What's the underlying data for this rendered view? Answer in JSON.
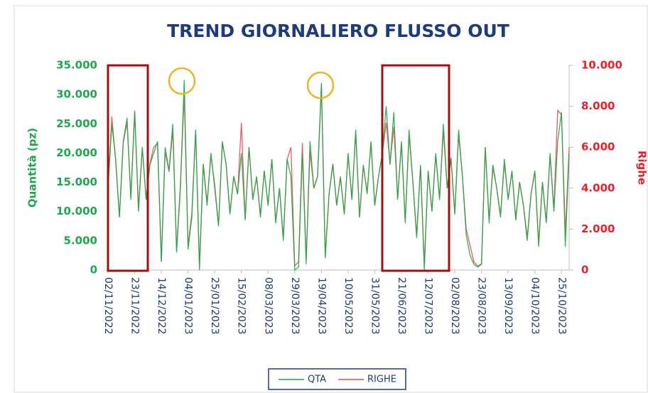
{
  "chart_data": {
    "type": "line",
    "title": "TREND GIORNALIERO FLUSSO OUT",
    "y_label": "Quantità (pz)",
    "y2_label": "Righe",
    "categories": [
      "02/11/2022",
      null,
      null,
      null,
      null,
      null,
      null,
      "23/11/2022",
      null,
      null,
      null,
      null,
      null,
      null,
      "14/12/2022",
      null,
      null,
      null,
      null,
      null,
      null,
      "04/01/2023",
      null,
      null,
      null,
      null,
      null,
      null,
      "25/01/2023",
      null,
      null,
      null,
      null,
      null,
      null,
      "15/02/2023",
      null,
      null,
      null,
      null,
      null,
      null,
      "08/03/2023",
      null,
      null,
      null,
      null,
      null,
      null,
      "29/03/2023",
      null,
      null,
      null,
      null,
      null,
      null,
      "19/04/2023",
      null,
      null,
      null,
      null,
      null,
      null,
      "10/05/2023",
      null,
      null,
      null,
      null,
      null,
      null,
      "31/05/2023",
      null,
      null,
      null,
      null,
      null,
      null,
      "21/06/2023",
      null,
      null,
      null,
      null,
      null,
      null,
      "12/07/2023",
      null,
      null,
      null,
      null,
      null,
      null,
      "02/08/2023",
      null,
      null,
      null,
      null,
      null,
      null,
      "23/08/2023",
      null,
      null,
      null,
      null,
      null,
      null,
      "13/09/2023",
      null,
      null,
      null,
      null,
      null,
      null,
      "04/10/2023",
      null,
      null,
      null,
      null,
      null,
      null,
      "25/10/2023",
      null,
      null
    ],
    "series": [
      {
        "name": "QTA",
        "color": "#1fa84b",
        "axis": "y",
        "values": [
          14000,
          25000,
          19000,
          9000,
          22000,
          26000,
          12000,
          27000,
          10000,
          21000,
          12000,
          18000,
          20000,
          22000,
          1500,
          21000,
          17000,
          25000,
          3000,
          14000,
          32500,
          3500,
          9000,
          24000,
          0,
          18000,
          11000,
          20000,
          14000,
          7500,
          22000,
          18000,
          9500,
          16000,
          13000,
          20000,
          8500,
          21000,
          12000,
          16000,
          9000,
          17000,
          11000,
          19000,
          8000,
          14000,
          5000,
          19000,
          16000,
          0,
          500,
          20000,
          1000,
          22000,
          14000,
          16000,
          32000,
          2000,
          13000,
          18000,
          11000,
          16000,
          9500,
          20000,
          12000,
          24000,
          9000,
          18000,
          13000,
          22000,
          11000,
          16000,
          20000,
          28000,
          18000,
          27000,
          12000,
          22000,
          8000,
          24000,
          15000,
          5500,
          18000,
          0,
          17000,
          10000,
          20000,
          12000,
          25000,
          14000,
          19000,
          9500,
          24000,
          16000,
          6000,
          2500,
          1000,
          500,
          1000,
          21000,
          8000,
          18000,
          14000,
          9000,
          19000,
          12000,
          17000,
          8500,
          15000,
          11000,
          5000,
          13000,
          17000,
          4000,
          15000,
          8000,
          20000,
          10000,
          22000,
          27000,
          4000,
          20000
        ]
      },
      {
        "name": "RIGHE",
        "color": "#ee4a4f",
        "axis": "y2",
        "values": [
          4000,
          7500,
          5400,
          2600,
          6200,
          7200,
          3600,
          7800,
          3000,
          6000,
          3500,
          5200,
          6000,
          6200,
          400,
          5800,
          4800,
          6800,
          1000,
          4200,
          8600,
          1200,
          2800,
          6800,
          200,
          5200,
          3300,
          5600,
          4200,
          2200,
          6200,
          5200,
          2800,
          4600,
          3700,
          7200,
          2500,
          6000,
          3500,
          4500,
          2700,
          4800,
          3200,
          5400,
          2400,
          4000,
          1600,
          5400,
          6000,
          200,
          400,
          6200,
          500,
          5800,
          4000,
          4600,
          9000,
          700,
          3700,
          5200,
          3200,
          4500,
          2800,
          5600,
          3500,
          6700,
          2600,
          5100,
          3800,
          6200,
          3200,
          4600,
          5700,
          7200,
          5200,
          7000,
          3500,
          6200,
          2400,
          6600,
          4300,
          1700,
          5100,
          300,
          4800,
          2900,
          5600,
          3500,
          6800,
          4000,
          5500,
          2800,
          6600,
          4600,
          2000,
          1200,
          400,
          200,
          300,
          6000,
          2500,
          5000,
          4000,
          2700,
          5200,
          3500,
          4800,
          2500,
          4300,
          3200,
          1600,
          3700,
          4800,
          1300,
          4300,
          2400,
          5600,
          3000,
          7800,
          7600,
          1800,
          6000
        ]
      }
    ],
    "ylim": [
      0,
      35000
    ],
    "yticks": [
      0,
      {
        "value": 5000,
        "label": "5.000"
      },
      {
        "value": 10000,
        "label": "10.000"
      },
      {
        "value": 15000,
        "label": "15.000"
      },
      {
        "value": 20000,
        "label": "20.000"
      },
      {
        "value": 25000,
        "label": "25.000"
      },
      {
        "value": 30000,
        "label": "30.000"
      },
      {
        "value": 35000,
        "label": "35.000"
      }
    ],
    "y2lim": [
      0,
      10000
    ],
    "y2ticks": [
      0,
      {
        "value": 2000,
        "label": "2.000"
      },
      {
        "value": 4000,
        "label": "4.000"
      },
      {
        "value": 6000,
        "label": "6.000"
      },
      {
        "value": 8000,
        "label": "8.000"
      },
      {
        "value": 10000,
        "label": "10.000"
      }
    ],
    "legend": "bottom"
  }
}
